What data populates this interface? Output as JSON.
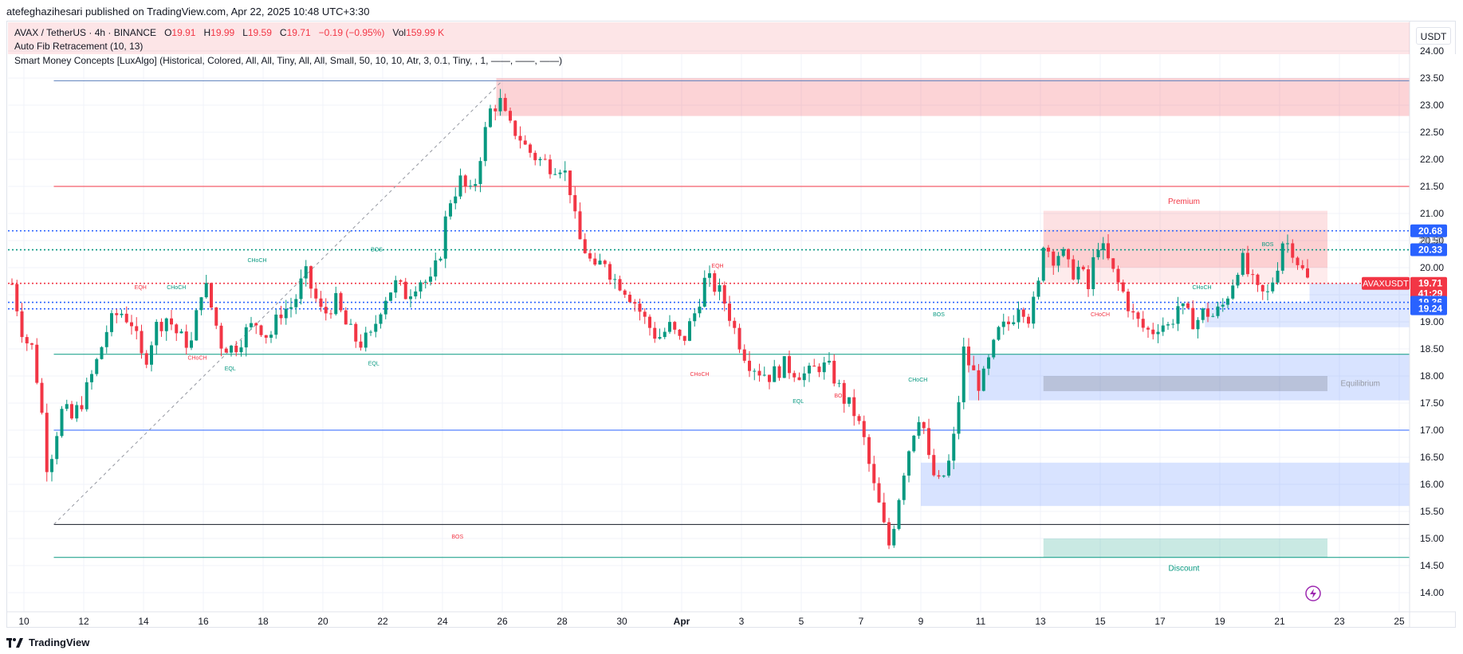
{
  "header": {
    "publisher_line": "atefeghazihesari published on TradingView.com, Apr 22, 2025 10:48 UTC+3:30"
  },
  "legend": {
    "symbol": "AVAX / TetherUS · 4h · BINANCE",
    "open_label": "O",
    "open": "19.91",
    "high_label": "H",
    "high": "19.99",
    "low_label": "L",
    "low": "19.59",
    "close_label": "C",
    "close": "19.71",
    "change": "−0.19 (−0.95%)",
    "vol_label": "Vol",
    "volume": "159.99 K",
    "indicator1": "Auto Fib Retracement (10, 13)",
    "indicator2": "Smart Money Concepts [LuxAlgo] (Historical, Colored, All, All, Tiny, All, All, Small, 50, 10, 10, Atr, 3, 0.1, Tiny, , 1, ——, ——, ——)"
  },
  "currency": "USDT",
  "footer": {
    "brand": "TradingView"
  },
  "colors": {
    "up": "#089981",
    "down": "#f23645",
    "fib_blue": "#2962ff",
    "zone_blue": "#2962ff",
    "zone_red": "#f23645",
    "zone_green": "#089981",
    "grid": "#f0f3fa"
  },
  "chart_data": {
    "type": "candlestick",
    "interval": "4h",
    "symbol": "AVAXUSDT",
    "ylim": [
      13.75,
      24.25
    ],
    "y_ticks": [
      "14.00",
      "14.50",
      "15.00",
      "15.50",
      "16.00",
      "16.50",
      "17.00",
      "17.50",
      "18.00",
      "18.50",
      "19.00",
      "19.50",
      "20.00",
      "20.50",
      "21.00",
      "21.50",
      "22.00",
      "22.50",
      "23.00",
      "23.50",
      "24.00"
    ],
    "x_ticks": [
      {
        "label": "10",
        "day": 10
      },
      {
        "label": "12",
        "day": 12
      },
      {
        "label": "14",
        "day": 14
      },
      {
        "label": "16",
        "day": 16
      },
      {
        "label": "18",
        "day": 18
      },
      {
        "label": "20",
        "day": 20
      },
      {
        "label": "22",
        "day": 22
      },
      {
        "label": "24",
        "day": 24
      },
      {
        "label": "26",
        "day": 26
      },
      {
        "label": "28",
        "day": 28
      },
      {
        "label": "30",
        "day": 30
      },
      {
        "label": "Apr",
        "day": 32,
        "bold": true
      },
      {
        "label": "3",
        "day": 34
      },
      {
        "label": "5",
        "day": 36
      },
      {
        "label": "7",
        "day": 38
      },
      {
        "label": "9",
        "day": 40
      },
      {
        "label": "11",
        "day": 42
      },
      {
        "label": "13",
        "day": 44
      },
      {
        "label": "15",
        "day": 46
      },
      {
        "label": "17",
        "day": 48
      },
      {
        "label": "19",
        "day": 50
      },
      {
        "label": "21",
        "day": 52
      },
      {
        "label": "23",
        "day": 54
      },
      {
        "label": "25",
        "day": 56
      }
    ],
    "price_path": [
      [
        9.6,
        19.7
      ],
      [
        10.0,
        18.7
      ],
      [
        10.3,
        18.5
      ],
      [
        10.6,
        17.3
      ],
      [
        10.8,
        16.2
      ],
      [
        11.0,
        16.8
      ],
      [
        11.3,
        17.4
      ],
      [
        11.6,
        17.2
      ],
      [
        12.0,
        17.6
      ],
      [
        12.4,
        18.2
      ],
      [
        12.8,
        18.9
      ],
      [
        13.2,
        19.2
      ],
      [
        13.6,
        19.0
      ],
      [
        14.0,
        18.2
      ],
      [
        14.4,
        18.9
      ],
      [
        14.8,
        19.1
      ],
      [
        15.2,
        18.7
      ],
      [
        15.6,
        18.6
      ],
      [
        16.0,
        19.8
      ],
      [
        16.3,
        19.2
      ],
      [
        16.6,
        18.6
      ],
      [
        17.0,
        18.5
      ],
      [
        17.4,
        18.8
      ],
      [
        17.8,
        19.0
      ],
      [
        18.2,
        18.7
      ],
      [
        18.6,
        19.2
      ],
      [
        19.0,
        19.3
      ],
      [
        19.4,
        19.9
      ],
      [
        19.7,
        19.5
      ],
      [
        20.0,
        19.1
      ],
      [
        20.4,
        19.4
      ],
      [
        20.8,
        18.9
      ],
      [
        21.2,
        18.6
      ],
      [
        21.6,
        18.7
      ],
      [
        22.0,
        19.4
      ],
      [
        22.4,
        19.7
      ],
      [
        22.8,
        19.5
      ],
      [
        23.2,
        19.8
      ],
      [
        23.6,
        19.7
      ],
      [
        23.9,
        20.2
      ],
      [
        24.2,
        21.2
      ],
      [
        24.6,
        21.6
      ],
      [
        25.0,
        21.3
      ],
      [
        25.3,
        22.2
      ],
      [
        25.6,
        22.9
      ],
      [
        25.9,
        23.1
      ],
      [
        26.2,
        22.6
      ],
      [
        26.5,
        22.5
      ],
      [
        26.8,
        22.2
      ],
      [
        27.2,
        22.0
      ],
      [
        27.6,
        21.9
      ],
      [
        28.0,
        21.9
      ],
      [
        28.3,
        21.4
      ],
      [
        28.5,
        20.6
      ],
      [
        28.8,
        20.3
      ],
      [
        29.1,
        19.9
      ],
      [
        29.4,
        20.2
      ],
      [
        29.7,
        19.8
      ],
      [
        30.0,
        19.7
      ],
      [
        30.4,
        19.4
      ],
      [
        30.8,
        19.0
      ],
      [
        31.2,
        18.7
      ],
      [
        31.6,
        18.9
      ],
      [
        32.0,
        18.6
      ],
      [
        32.4,
        19.1
      ],
      [
        32.8,
        19.8
      ],
      [
        33.2,
        19.6
      ],
      [
        33.5,
        19.3
      ],
      [
        33.8,
        18.8
      ],
      [
        34.2,
        18.3
      ],
      [
        34.6,
        18.1
      ],
      [
        35.0,
        18.0
      ],
      [
        35.4,
        18.2
      ],
      [
        35.8,
        18.1
      ],
      [
        36.2,
        18.0
      ],
      [
        36.6,
        18.2
      ],
      [
        37.0,
        18.1
      ],
      [
        37.4,
        17.6
      ],
      [
        37.8,
        17.3
      ],
      [
        38.1,
        16.8
      ],
      [
        38.4,
        16.0
      ],
      [
        38.7,
        15.4
      ],
      [
        38.9,
        14.8
      ],
      [
        39.1,
        15.3
      ],
      [
        39.4,
        16.2
      ],
      [
        39.7,
        16.9
      ],
      [
        40.0,
        17.4
      ],
      [
        40.3,
        16.3
      ],
      [
        40.6,
        16.0
      ],
      [
        40.9,
        16.3
      ],
      [
        41.2,
        17.1
      ],
      [
        41.4,
        18.5
      ],
      [
        41.7,
        18.1
      ],
      [
        42.0,
        17.8
      ],
      [
        42.3,
        18.3
      ],
      [
        42.6,
        18.8
      ],
      [
        43.0,
        19.0
      ],
      [
        43.3,
        19.4
      ],
      [
        43.6,
        19.1
      ],
      [
        43.9,
        19.5
      ],
      [
        44.1,
        20.5
      ],
      [
        44.4,
        20.2
      ],
      [
        44.7,
        20.3
      ],
      [
        45.0,
        19.9
      ],
      [
        45.3,
        20.0
      ],
      [
        45.6,
        19.6
      ],
      [
        45.9,
        20.5
      ],
      [
        46.2,
        20.2
      ],
      [
        46.5,
        19.8
      ],
      [
        46.8,
        19.5
      ],
      [
        47.1,
        19.1
      ],
      [
        47.4,
        18.9
      ],
      [
        47.7,
        18.8
      ],
      [
        48.0,
        19.0
      ],
      [
        48.3,
        18.9
      ],
      [
        48.6,
        19.3
      ],
      [
        48.9,
        19.1
      ],
      [
        49.2,
        19.0
      ],
      [
        49.5,
        19.2
      ],
      [
        49.8,
        19.1
      ],
      [
        50.1,
        19.3
      ],
      [
        50.4,
        19.7
      ],
      [
        50.7,
        20.2
      ],
      [
        51.0,
        19.8
      ],
      [
        51.3,
        19.5
      ],
      [
        51.6,
        19.5
      ],
      [
        51.9,
        20.0
      ],
      [
        52.1,
        20.5
      ],
      [
        52.4,
        20.4
      ],
      [
        52.7,
        20.0
      ],
      [
        53.0,
        19.7
      ]
    ],
    "levels": [
      {
        "value": 23.45,
        "color": "#5b7fbd",
        "style": "solid"
      },
      {
        "value": 21.5,
        "color": "#f23645",
        "style": "solid"
      },
      {
        "value": 18.4,
        "color": "#089981",
        "style": "solid"
      },
      {
        "value": 17.0,
        "color": "#2962ff",
        "style": "solid"
      },
      {
        "value": 15.26,
        "color": "#131722",
        "style": "solid"
      },
      {
        "value": 14.65,
        "color": "#089981",
        "style": "solid"
      },
      {
        "value": 20.68,
        "color": "#2962ff",
        "style": "dotted"
      },
      {
        "value": 20.33,
        "color": "#089981",
        "style": "dotted"
      },
      {
        "value": 19.36,
        "color": "#2962ff",
        "style": "dotted"
      },
      {
        "value": 19.24,
        "color": "#2962ff",
        "style": "dotted"
      },
      {
        "value": 19.71,
        "color": "#f23645",
        "style": "dotted"
      }
    ],
    "zones": [
      {
        "from_day": 25.8,
        "to_day": 57.5,
        "low": 22.8,
        "high": 23.5,
        "color": "#f23645",
        "opacity": 0.22
      },
      {
        "from_day": 44.1,
        "to_day": 53.6,
        "low": 20.0,
        "high": 21.05,
        "color": "#f23645",
        "opacity": 0.15
      },
      {
        "from_day": 44.1,
        "to_day": 53.6,
        "low": 19.7,
        "high": 20.7,
        "color": "#f23645",
        "opacity": 0.1
      },
      {
        "from_day": 53.0,
        "to_day": 57.5,
        "low": 19.36,
        "high": 19.71,
        "color": "#2962ff",
        "opacity": 0.15
      },
      {
        "from_day": 49.5,
        "to_day": 57.5,
        "low": 18.9,
        "high": 19.36,
        "color": "#2962ff",
        "opacity": 0.15
      },
      {
        "from_day": 41.6,
        "to_day": 57.5,
        "low": 17.55,
        "high": 18.4,
        "color": "#2962ff",
        "opacity": 0.18
      },
      {
        "from_day": 44.1,
        "to_day": 53.6,
        "low": 17.72,
        "high": 18.0,
        "color": "#5d606b",
        "opacity": 0.25
      },
      {
        "from_day": 40.0,
        "to_day": 57.5,
        "low": 15.6,
        "high": 16.4,
        "color": "#2962ff",
        "opacity": 0.18
      },
      {
        "from_day": 44.1,
        "to_day": 53.6,
        "low": 14.65,
        "high": 15.0,
        "color": "#089981",
        "opacity": 0.22
      }
    ],
    "zone_labels": [
      {
        "text": "Premium",
        "day": 48.8,
        "value": 21.22,
        "color": "#f23645"
      },
      {
        "text": "Equilibrium",
        "day": 54.7,
        "value": 17.86,
        "color": "#9598a1"
      },
      {
        "text": "Discount",
        "day": 48.8,
        "value": 14.45,
        "color": "#089981"
      }
    ],
    "structure_labels": [
      {
        "text": "EQH",
        "day": 13.9,
        "value": 19.6,
        "color": "#f23645"
      },
      {
        "text": "CHoCH",
        "day": 15.1,
        "value": 19.6,
        "color": "#089981"
      },
      {
        "text": "CHoCH",
        "day": 17.8,
        "value": 20.1,
        "color": "#089981"
      },
      {
        "text": "BOS",
        "day": 21.8,
        "value": 20.3,
        "color": "#089981"
      },
      {
        "text": "CHoCH",
        "day": 15.8,
        "value": 18.3,
        "color": "#f23645"
      },
      {
        "text": "EQL",
        "day": 16.9,
        "value": 18.1,
        "color": "#089981"
      },
      {
        "text": "EQL",
        "day": 21.7,
        "value": 18.2,
        "color": "#089981"
      },
      {
        "text": "EQH",
        "day": 33.2,
        "value": 20.0,
        "color": "#f23645"
      },
      {
        "text": "CHoCH",
        "day": 32.6,
        "value": 18.0,
        "color": "#f23645"
      },
      {
        "text": "EQL",
        "day": 35.9,
        "value": 17.5,
        "color": "#089981"
      },
      {
        "text": "BOS",
        "day": 37.3,
        "value": 17.6,
        "color": "#f23645"
      },
      {
        "text": "CHoCH",
        "day": 39.9,
        "value": 17.9,
        "color": "#089981"
      },
      {
        "text": "BOS",
        "day": 40.6,
        "value": 19.1,
        "color": "#089981"
      },
      {
        "text": "CHoCH",
        "day": 46.0,
        "value": 19.1,
        "color": "#f23645"
      },
      {
        "text": "CHoCH",
        "day": 49.4,
        "value": 19.6,
        "color": "#089981"
      },
      {
        "text": "BOS",
        "day": 51.6,
        "value": 20.4,
        "color": "#089981"
      },
      {
        "text": "BOS",
        "day": 24.5,
        "value": 15.0,
        "color": "#f23645"
      }
    ],
    "price_labels": [
      {
        "text": "20.68",
        "value": 20.68,
        "color": "#2962ff"
      },
      {
        "text": "20.50",
        "value": 20.5,
        "color": "#9598a1"
      },
      {
        "text": "20.33",
        "value": 20.33,
        "color": "#2962ff"
      },
      {
        "text": "19.71",
        "value": 19.71,
        "color": "#f23645"
      },
      {
        "text": "41:29",
        "value": 19.52,
        "color": "#f23645"
      },
      {
        "text": "19.36",
        "value": 19.36,
        "color": "#2962ff"
      },
      {
        "text": "19.24",
        "value": 19.24,
        "color": "#2962ff"
      }
    ],
    "ticker_label": "AVAXUSDT",
    "fib_line": {
      "from_day": 11.0,
      "from_value": 15.26,
      "to_day": 26.0,
      "to_value": 23.45
    },
    "grid": true
  }
}
